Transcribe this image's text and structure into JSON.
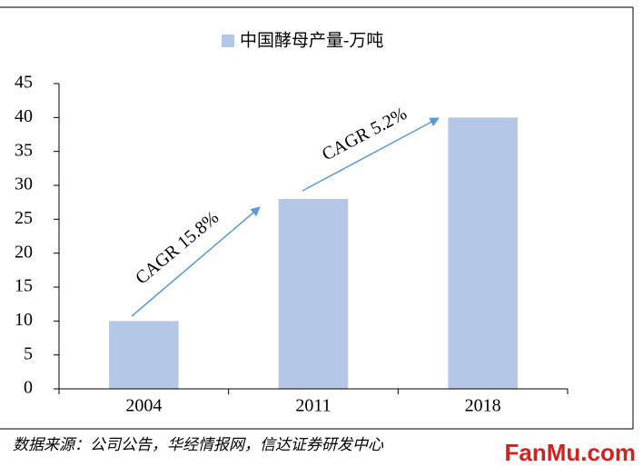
{
  "chart_data": {
    "type": "bar",
    "series": [
      {
        "name": "中国酵母产量-万吨",
        "color": "#b4c7e7",
        "values": [
          10,
          28,
          40
        ]
      }
    ],
    "categories": [
      "2004",
      "2011",
      "2018"
    ],
    "ylim": [
      0,
      45
    ],
    "yticks": [
      0,
      5,
      10,
      15,
      20,
      25,
      30,
      35,
      40,
      45
    ],
    "annotations": [
      "CAGR 15.8%",
      "CAGR 5.2%"
    ],
    "source": "数据来源：公司公告，华经情报网，信达证券研发中心",
    "watermark": "FanMu.com"
  }
}
